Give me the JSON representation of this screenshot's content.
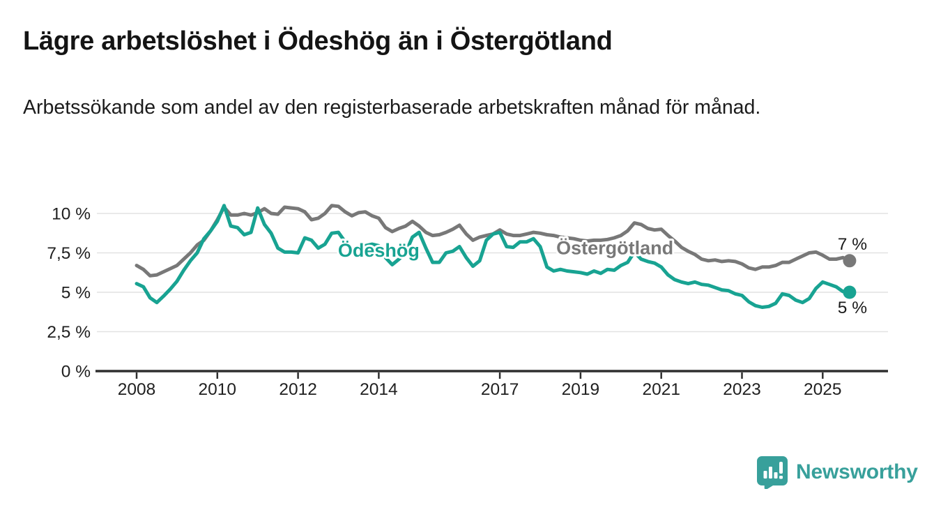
{
  "page": {
    "title": "Lägre arbetslöshet i Ödeshög än i Östergötland",
    "subtitle": "Arbetssökande som andel av den registerbaserade arbetskraften månad för månad."
  },
  "footer": {
    "brand": "Newsworthy",
    "logo_icon": "bar-chart-speech-bubble"
  },
  "colors": {
    "odeshog": "#18a392",
    "ostergotland": "#787878",
    "axis": "#2f2f2f",
    "grid": "#e2e2e2",
    "tick_text": "#1f1f1f",
    "brand_teal": "#38a09b"
  },
  "chart_data": {
    "type": "line",
    "title": "Lägre arbetslöshet i Ödeshög än i Östergötland",
    "subtitle": "Arbetssökande som andel av den registerbaserade arbetskraften månad för månad.",
    "unit": "%",
    "grid": "horizontal",
    "legend_position": "inline-labels",
    "x_start": 2008,
    "x_step_years": 0.1666667,
    "xlim": [
      2007.9,
      2026.0
    ],
    "ylim": [
      0,
      10.8
    ],
    "x_ticks": [
      2008,
      2010,
      2012,
      2014,
      2017,
      2019,
      2021,
      2023,
      2025
    ],
    "y_ticks": [
      {
        "value": 0,
        "label": "0 %"
      },
      {
        "value": 2.5,
        "label": "2,5 %"
      },
      {
        "value": 5,
        "label": "5 %"
      },
      {
        "value": 7.5,
        "label": "7,5 %"
      },
      {
        "value": 10,
        "label": "10 %"
      }
    ],
    "series": [
      {
        "name": "Östergötland",
        "color": "#787878",
        "end_label": "7 %",
        "end_value": 7.0,
        "label_anchor": {
          "t": 2019.85,
          "v": 7.8
        },
        "values": [
          6.7,
          6.45,
          6.05,
          6.1,
          6.3,
          6.5,
          6.7,
          7.1,
          7.5,
          8.0,
          8.3,
          8.9,
          9.6,
          10.4,
          9.9,
          9.9,
          10.0,
          9.9,
          10.05,
          10.3,
          10.0,
          9.95,
          10.4,
          10.35,
          10.3,
          10.1,
          9.6,
          9.7,
          10.0,
          10.5,
          10.45,
          10.1,
          9.85,
          10.05,
          10.1,
          9.85,
          9.7,
          9.1,
          8.85,
          9.05,
          9.2,
          9.5,
          9.2,
          8.8,
          8.6,
          8.65,
          8.8,
          9.0,
          9.25,
          8.7,
          8.3,
          8.5,
          8.6,
          8.7,
          8.95,
          8.7,
          8.6,
          8.6,
          8.7,
          8.8,
          8.75,
          8.65,
          8.6,
          8.5,
          8.45,
          8.4,
          8.3,
          8.25,
          8.3,
          8.3,
          8.35,
          8.45,
          8.6,
          8.9,
          9.4,
          9.3,
          9.05,
          8.95,
          9.0,
          8.6,
          8.25,
          7.85,
          7.6,
          7.4,
          7.1,
          7.0,
          7.05,
          6.95,
          7.0,
          6.95,
          6.8,
          6.55,
          6.45,
          6.6,
          6.6,
          6.7,
          6.9,
          6.9,
          7.1,
          7.3,
          7.5,
          7.55,
          7.35,
          7.1,
          7.1,
          7.2,
          7.0
        ]
      },
      {
        "name": "Ödeshög",
        "color": "#18a392",
        "end_label": "5 %",
        "end_value": 5.0,
        "label_anchor": {
          "t": 2014.0,
          "v": 7.65
        },
        "values": [
          5.55,
          5.35,
          4.65,
          4.35,
          4.75,
          5.2,
          5.7,
          6.4,
          7.0,
          7.5,
          8.4,
          8.9,
          9.5,
          10.5,
          9.2,
          9.1,
          8.65,
          8.8,
          10.35,
          9.3,
          8.75,
          7.8,
          7.55,
          7.55,
          7.5,
          8.45,
          8.3,
          7.8,
          8.05,
          8.75,
          8.8,
          8.2,
          7.7,
          7.85,
          7.95,
          8.05,
          7.95,
          7.2,
          6.75,
          7.1,
          7.5,
          8.5,
          8.8,
          7.8,
          6.9,
          6.9,
          7.5,
          7.6,
          7.9,
          7.2,
          6.65,
          7.0,
          8.3,
          8.7,
          8.8,
          7.9,
          7.85,
          8.2,
          8.2,
          8.4,
          7.9,
          6.6,
          6.35,
          6.45,
          6.35,
          6.3,
          6.25,
          6.15,
          6.35,
          6.2,
          6.45,
          6.4,
          6.7,
          6.9,
          7.55,
          7.1,
          6.95,
          6.85,
          6.6,
          6.1,
          5.8,
          5.65,
          5.55,
          5.65,
          5.5,
          5.45,
          5.3,
          5.15,
          5.1,
          4.9,
          4.8,
          4.4,
          4.15,
          4.05,
          4.1,
          4.3,
          4.9,
          4.8,
          4.5,
          4.35,
          4.6,
          5.25,
          5.65,
          5.5,
          5.35,
          5.05,
          5.0
        ]
      }
    ]
  }
}
